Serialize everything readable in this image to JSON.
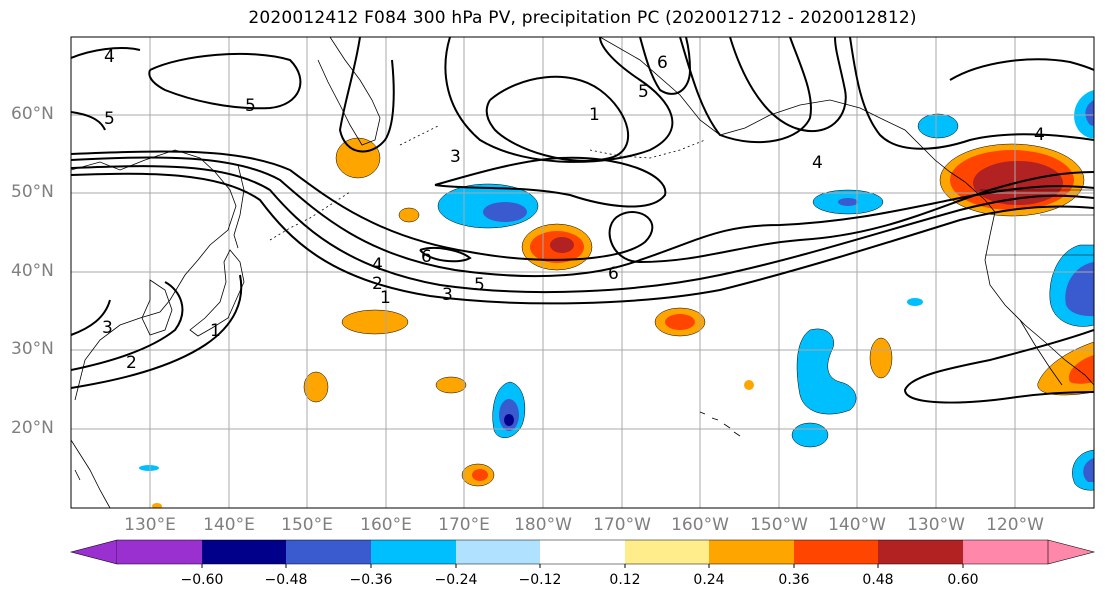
{
  "title": "2020012412 F084 300 hPa PV, precipitation PC (2020012712 - 2020012812)",
  "lat_labels": [
    "60°N",
    "50°N",
    "40°N",
    "30°N",
    "20°N"
  ],
  "lon_labels": [
    "130°E",
    "140°E",
    "150°E",
    "160°E",
    "170°E",
    "180°W",
    "170°W",
    "160°W",
    "150°W",
    "140°W",
    "130°W",
    "120°W"
  ],
  "contour_labels": [
    "4",
    "5",
    "5",
    "3",
    "4",
    "2",
    "1",
    "3",
    "5",
    "6",
    "6",
    "1",
    "3",
    "2",
    "1",
    "5",
    "6",
    "4",
    "4"
  ],
  "colorbar": {
    "ticks": [
      "−0.60",
      "−0.48",
      "−0.36",
      "−0.24",
      "−0.12",
      "0.12",
      "0.24",
      "0.36",
      "0.48",
      "0.60"
    ],
    "colors": [
      "#9b30d0",
      "#00008b",
      "#3a5bd0",
      "#00bfff",
      "#b0e2ff",
      "#ffffff",
      "#ffec8b",
      "#ffa500",
      "#ff4500",
      "#b22222",
      "#ff88aa"
    ]
  },
  "colors": {
    "contour": "#000000",
    "coast": "#000000",
    "grid": "#a9a9a9",
    "label": "#7f7f7f"
  }
}
